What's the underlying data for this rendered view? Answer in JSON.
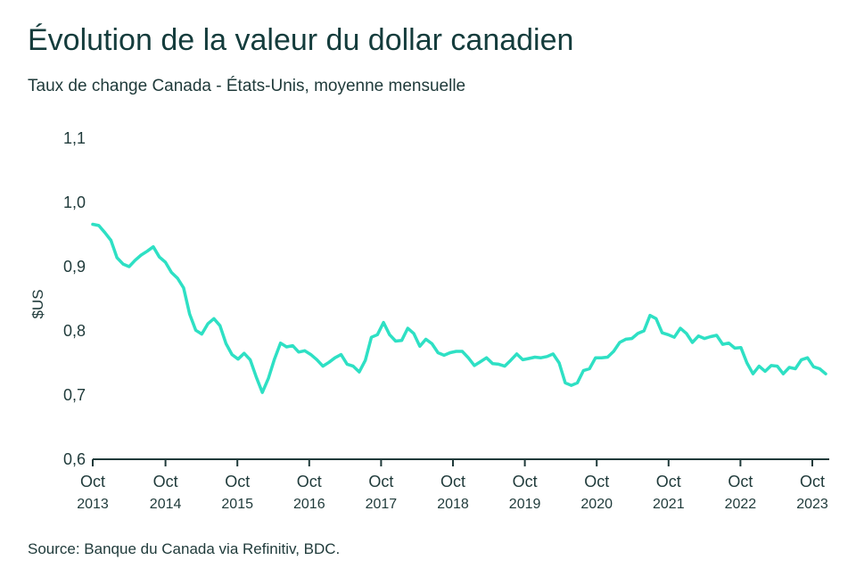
{
  "header": {
    "title": "Évolution de la valeur du dollar canadien",
    "subtitle": "Taux de change Canada - États-Unis, moyenne mensuelle"
  },
  "footer": {
    "source": "Source: Banque du Canada via Refinitiv, BDC."
  },
  "chart_data": {
    "type": "line",
    "ylabel": "$US",
    "ylim": [
      0.6,
      1.1
    ],
    "yticks": [
      "0,6",
      "0,7",
      "0,8",
      "0,9",
      "1,0",
      "1,1"
    ],
    "xticks": [
      {
        "month": "Oct",
        "year": "2013"
      },
      {
        "month": "Oct",
        "year": "2014"
      },
      {
        "month": "Oct",
        "year": "2015"
      },
      {
        "month": "Oct",
        "year": "2016"
      },
      {
        "month": "Oct",
        "year": "2017"
      },
      {
        "month": "Oct",
        "year": "2018"
      },
      {
        "month": "Oct",
        "year": "2019"
      },
      {
        "month": "Oct",
        "year": "2020"
      },
      {
        "month": "Oct",
        "year": "2021"
      },
      {
        "month": "Oct",
        "year": "2022"
      },
      {
        "month": "Oct",
        "year": "2023"
      }
    ],
    "grid": false,
    "line_color": "#2ee0c4",
    "series": [
      {
        "start": "2013-07",
        "values": [
          0.966,
          0.964,
          0.953,
          0.941,
          0.914,
          0.904,
          0.9,
          0.91,
          0.918,
          0.924,
          0.931,
          0.915,
          0.907,
          0.891,
          0.882,
          0.867,
          0.826,
          0.801,
          0.795,
          0.811,
          0.819,
          0.808,
          0.78,
          0.763,
          0.756,
          0.765,
          0.755,
          0.728,
          0.704,
          0.726,
          0.756,
          0.781,
          0.775,
          0.777,
          0.767,
          0.769,
          0.763,
          0.755,
          0.745,
          0.751,
          0.758,
          0.763,
          0.748,
          0.745,
          0.736,
          0.754,
          0.79,
          0.794,
          0.813,
          0.794,
          0.784,
          0.785,
          0.804,
          0.796,
          0.776,
          0.787,
          0.78,
          0.766,
          0.762,
          0.766,
          0.768,
          0.768,
          0.758,
          0.746,
          0.752,
          0.758,
          0.749,
          0.748,
          0.745,
          0.754,
          0.764,
          0.755,
          0.757,
          0.759,
          0.758,
          0.76,
          0.764,
          0.75,
          0.719,
          0.715,
          0.719,
          0.738,
          0.741,
          0.758,
          0.758,
          0.759,
          0.768,
          0.782,
          0.787,
          0.788,
          0.796,
          0.8,
          0.824,
          0.819,
          0.797,
          0.794,
          0.79,
          0.804,
          0.796,
          0.782,
          0.792,
          0.788,
          0.791,
          0.793,
          0.779,
          0.781,
          0.773,
          0.774,
          0.75,
          0.733,
          0.745,
          0.737,
          0.746,
          0.745,
          0.733,
          0.743,
          0.741,
          0.755,
          0.758,
          0.744,
          0.741,
          0.733
        ]
      }
    ]
  }
}
